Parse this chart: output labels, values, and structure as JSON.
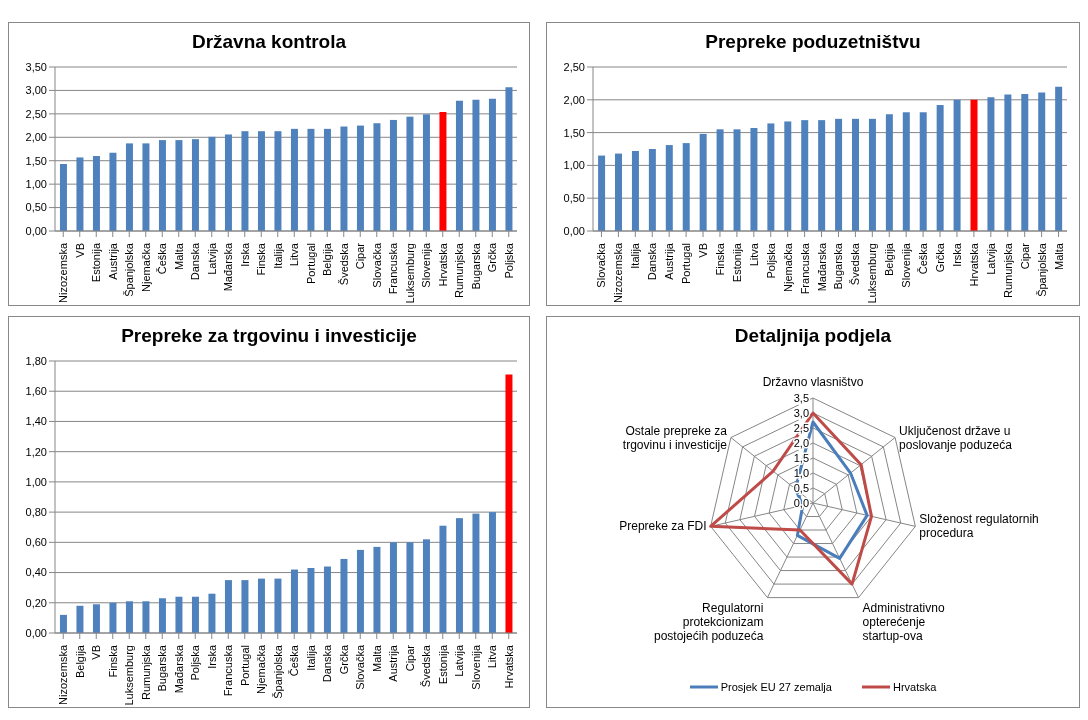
{
  "chart_data": [
    {
      "type": "bar",
      "title": "Državna kontrola",
      "categories": [
        "Nizozemska",
        "VB",
        "Estonija",
        "Austrija",
        "Španjolska",
        "Njemačka",
        "Češka",
        "Malta",
        "Danska",
        "Latvija",
        "Mađarska",
        "Irska",
        "Finska",
        "Italija",
        "Litva",
        "Portugal",
        "Belgija",
        "Švedska",
        "Cipar",
        "Slovačka",
        "Francuska",
        "Luksemburg",
        "Slovenija",
        "Hrvatska",
        "Rumunjska",
        "Bugarska",
        "Grčka",
        "Poljska"
      ],
      "values": [
        1.43,
        1.57,
        1.6,
        1.67,
        1.87,
        1.87,
        1.94,
        1.94,
        1.96,
        2.01,
        2.06,
        2.13,
        2.13,
        2.13,
        2.18,
        2.18,
        2.18,
        2.23,
        2.25,
        2.3,
        2.37,
        2.44,
        2.49,
        2.54,
        2.78,
        2.8,
        2.82,
        3.07
      ],
      "colors": [
        "#4f81bd",
        "#4f81bd",
        "#4f81bd",
        "#4f81bd",
        "#4f81bd",
        "#4f81bd",
        "#4f81bd",
        "#4f81bd",
        "#4f81bd",
        "#4f81bd",
        "#4f81bd",
        "#4f81bd",
        "#4f81bd",
        "#4f81bd",
        "#4f81bd",
        "#4f81bd",
        "#4f81bd",
        "#4f81bd",
        "#4f81bd",
        "#4f81bd",
        "#4f81bd",
        "#4f81bd",
        "#4f81bd",
        "#ff0000",
        "#4f81bd",
        "#4f81bd",
        "#4f81bd",
        "#4f81bd"
      ],
      "ylim": [
        0,
        3.5
      ],
      "yticks": [
        {
          "value": 0,
          "label": "0,00"
        },
        {
          "value": 0.5,
          "label": "0,50"
        },
        {
          "value": 1,
          "label": "1,00"
        },
        {
          "value": 1.5,
          "label": "1,50"
        },
        {
          "value": 2,
          "label": "2,00"
        },
        {
          "value": 2.5,
          "label": "2,50"
        },
        {
          "value": 3,
          "label": "3,00"
        },
        {
          "value": 3.5,
          "label": "3,50"
        }
      ],
      "grid": "y"
    },
    {
      "type": "bar",
      "title": "Prepreke poduzetništvu",
      "categories": [
        "Slovačka",
        "Nizozemska",
        "Italija",
        "Danska",
        "Austrija",
        "Portugal",
        "VB",
        "Finska",
        "Estonija",
        "Litva",
        "Poljska",
        "Njemačka",
        "Francuska",
        "Mađarska",
        "Bugarska",
        "Švedska",
        "Luksemburg",
        "Belgija",
        "Slovenija",
        "Češka",
        "Grčka",
        "Irska",
        "Hrvatska",
        "Latvija",
        "Rumunjska",
        "Cipar",
        "Španjolska",
        "Malta"
      ],
      "values": [
        1.15,
        1.18,
        1.22,
        1.25,
        1.31,
        1.34,
        1.48,
        1.55,
        1.55,
        1.57,
        1.64,
        1.67,
        1.69,
        1.69,
        1.71,
        1.71,
        1.71,
        1.78,
        1.81,
        1.81,
        1.92,
        2.0,
        2.0,
        2.04,
        2.08,
        2.09,
        2.11,
        2.2
      ],
      "colors": [
        "#4f81bd",
        "#4f81bd",
        "#4f81bd",
        "#4f81bd",
        "#4f81bd",
        "#4f81bd",
        "#4f81bd",
        "#4f81bd",
        "#4f81bd",
        "#4f81bd",
        "#4f81bd",
        "#4f81bd",
        "#4f81bd",
        "#4f81bd",
        "#4f81bd",
        "#4f81bd",
        "#4f81bd",
        "#4f81bd",
        "#4f81bd",
        "#4f81bd",
        "#4f81bd",
        "#4f81bd",
        "#ff0000",
        "#4f81bd",
        "#4f81bd",
        "#4f81bd",
        "#4f81bd",
        "#4f81bd"
      ],
      "ylim": [
        0,
        2.5
      ],
      "yticks": [
        {
          "value": 0,
          "label": "0,00"
        },
        {
          "value": 0.5,
          "label": "0,50"
        },
        {
          "value": 1,
          "label": "1,00"
        },
        {
          "value": 1.5,
          "label": "1,50"
        },
        {
          "value": 2,
          "label": "2,00"
        },
        {
          "value": 2.5,
          "label": "2,50"
        }
      ],
      "grid": "y"
    },
    {
      "type": "bar",
      "title": "Prepreke za trgovinu i investicije",
      "categories": [
        "Nizozemska",
        "Belgija",
        "VB",
        "Finska",
        "Luksemburg",
        "Rumunjska",
        "Bugarska",
        "Mađarska",
        "Poljska",
        "Irska",
        "Francuska",
        "Portugal",
        "Njemačka",
        "Španjolska",
        "Češka",
        "Italija",
        "Danska",
        "Grčka",
        "Slovačka",
        "Malta",
        "Austrija",
        "Cipar",
        "Švedska",
        "Estonija",
        "Latvija",
        "Slovenija",
        "Litva",
        "Hrvatska"
      ],
      "values": [
        0.12,
        0.18,
        0.19,
        0.2,
        0.21,
        0.21,
        0.23,
        0.24,
        0.24,
        0.26,
        0.35,
        0.35,
        0.36,
        0.36,
        0.42,
        0.43,
        0.44,
        0.49,
        0.55,
        0.57,
        0.6,
        0.6,
        0.62,
        0.71,
        0.76,
        0.79,
        0.8,
        1.71
      ],
      "colors": [
        "#4f81bd",
        "#4f81bd",
        "#4f81bd",
        "#4f81bd",
        "#4f81bd",
        "#4f81bd",
        "#4f81bd",
        "#4f81bd",
        "#4f81bd",
        "#4f81bd",
        "#4f81bd",
        "#4f81bd",
        "#4f81bd",
        "#4f81bd",
        "#4f81bd",
        "#4f81bd",
        "#4f81bd",
        "#4f81bd",
        "#4f81bd",
        "#4f81bd",
        "#4f81bd",
        "#4f81bd",
        "#4f81bd",
        "#4f81bd",
        "#4f81bd",
        "#4f81bd",
        "#4f81bd",
        "#ff0000"
      ],
      "ylim": [
        0,
        1.8
      ],
      "yticks": [
        {
          "value": 0,
          "label": "0,00"
        },
        {
          "value": 0.2,
          "label": "0,20"
        },
        {
          "value": 0.4,
          "label": "0,40"
        },
        {
          "value": 0.6,
          "label": "0,60"
        },
        {
          "value": 0.8,
          "label": "0,80"
        },
        {
          "value": 1,
          "label": "1,00"
        },
        {
          "value": 1.2,
          "label": "1,20"
        },
        {
          "value": 1.4,
          "label": "1,40"
        },
        {
          "value": 1.6,
          "label": "1,60"
        },
        {
          "value": 1.8,
          "label": "1,80"
        }
      ],
      "grid": "y"
    },
    {
      "type": "radar",
      "title": "Detaljnija podjela",
      "categories": [
        "Državno vlasništvo",
        "Uključenost države u poslovanje poduzeća",
        "Složenost regulatornih procedura",
        "Administrativno opterećenje startup-ova",
        "Regulatorni protekcionizam postojećih poduzeća",
        "Prepreke za FDI",
        "Ostale prepreke za trgovinu i investicije"
      ],
      "series": [
        {
          "name": "Prosjek EU 27 zemalja",
          "color": "#4a7ebb",
          "values": [
            2.7,
            1.6,
            1.85,
            2.05,
            1.2,
            0.35,
            0.75
          ]
        },
        {
          "name": "Hrvatska",
          "color": "#be4b48",
          "values": [
            3.0,
            2.05,
            2.0,
            3.0,
            1.0,
            3.5,
            1.7
          ]
        }
      ],
      "ylim": [
        0,
        3.5
      ],
      "yticks": [
        {
          "value": 0,
          "label": "0,0"
        },
        {
          "value": 0.5,
          "label": "0,5"
        },
        {
          "value": 1,
          "label": "1,0"
        },
        {
          "value": 1.5,
          "label": "1,5"
        },
        {
          "value": 2,
          "label": "2,0"
        },
        {
          "value": 2.5,
          "label": "2,5"
        },
        {
          "value": 3,
          "label": "3,0"
        },
        {
          "value": 3.5,
          "label": "3,5"
        }
      ],
      "legend": "bottom"
    }
  ]
}
